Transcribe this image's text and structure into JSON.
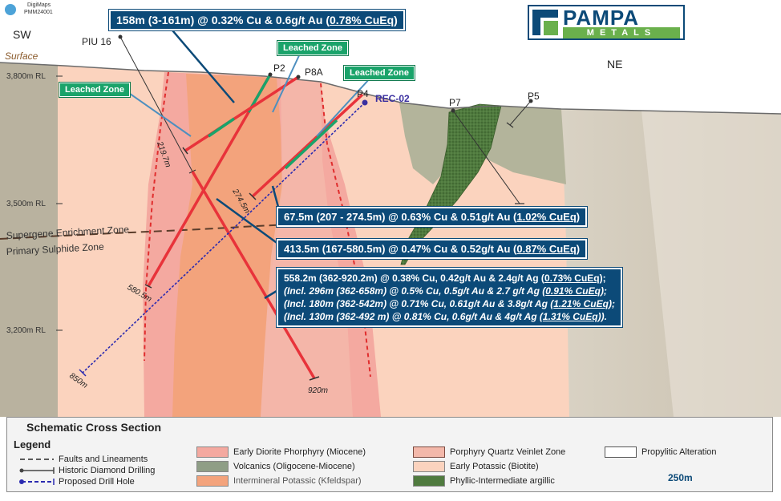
{
  "top_left_badge": {
    "line1": "DigiMaps",
    "line2": "PMM24001"
  },
  "orientation": {
    "left": "SW",
    "right": "NE"
  },
  "surface_label": "Surface",
  "elevations": [
    "3,800m RL",
    "3,500m RL",
    "3,200m RL"
  ],
  "zones": {
    "supergene": "Supergene Enrichment Zone",
    "primary": "Primary Sulphide Zone"
  },
  "holes": {
    "piu16": "PIU 16",
    "p2": "P2",
    "p8a": "P8A",
    "p4": "P4",
    "rec02": "REC-02",
    "p7": "P7",
    "p5": "P5"
  },
  "depths": {
    "d219": "219.7m",
    "d274": "274.5m",
    "d580": "580.5m",
    "d850": "850m",
    "d920": "920m"
  },
  "leached": [
    "Leached Zone",
    "Leached Zone",
    "Leached Zone"
  ],
  "callouts": {
    "c1": {
      "text": "158m (3-161m) @ 0.32% Cu & 0.6g/t Au (",
      "eq": "0.78% CuEq",
      "end": ")"
    },
    "c2": {
      "text": "67.5m (207 - 274.5m) @ 0.63% Cu & 0.51g/t Au (",
      "eq": "1.02% CuEq",
      "end": ")"
    },
    "c3": {
      "text": "413.5m (167-580.5m) @ 0.47% Cu & 0.52g/t Au (",
      "eq": "0.87% CuEq",
      "end": ")"
    },
    "c4": {
      "l1": "558.2m (362-920.2m) @ 0.38% Cu, 0.42g/t Au & 2.4g/t Ag (",
      "l1eq": "0.73% CuEq",
      "l1end": ");",
      "l2": "(Incl. 296m (362-658m) @ 0.5% Cu, 0.5g/t Au & 2.7 g/t Ag (",
      "l2eq": "0.91% CuEq",
      "l2end": ");",
      "l3": "(Incl. 180m (362-542m) @ 0.71% Cu, 0.61g/t Au & 3.8g/t Ag (",
      "l3eq": "1.21% CuEq",
      "l3end": ");",
      "l4": "(Incl. 130m (362-492 m) @ 0.81% Cu, 0.6g/t Au & 4g/t Ag (",
      "l4eq": "1.31% CuEq",
      "l4end": "))."
    }
  },
  "logo": {
    "word1": "PAMPA",
    "word2": "METALS"
  },
  "legend": {
    "title": "Schematic Cross Section",
    "heading": "Legend",
    "faults": "Faults and Lineaments",
    "historic": "Historic Diamond Drilling",
    "proposed": "Proposed Drill Hole",
    "diorite": "Early Diorite Phorphyry (Miocene)",
    "volcanics": "Volcanics (Oligocene-Miocene)",
    "intermineral": "Intermineral Potassic (Kfeldspar)",
    "quartz": "Porphyry Quartz Veinlet Zone",
    "early_potassic": "Early Potassic (Biotite)",
    "phyllic": "Phyllic-Intermediate argillic",
    "propylitic": "Propylitic Alteration",
    "scale": "250m"
  },
  "colors": {
    "callout_bg": "#0c4a78",
    "leached_bg": "#1aa36a",
    "diorite": "#f4a9a0",
    "volcanics": "#8f9e86",
    "intermineral": "#f3a37c",
    "quartz": "#f3b8aa",
    "early_potassic": "#fbd3be",
    "phyllic": "#4f7a3e",
    "propylitic": "#ffffff"
  }
}
